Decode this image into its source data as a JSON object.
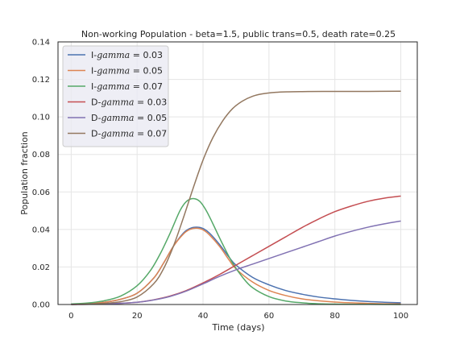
{
  "chart_data": {
    "type": "line",
    "title": "Non-working Population - beta=1.5, public trans=0.5, death rate=0.25",
    "xlabel": "Time (days)",
    "ylabel": "Population fraction",
    "xlim": [
      -4,
      105
    ],
    "ylim": [
      0,
      0.14
    ],
    "xticks": [
      0,
      20,
      40,
      60,
      80,
      100
    ],
    "xtick_labels": [
      "0",
      "20",
      "40",
      "60",
      "80",
      "100"
    ],
    "yticks": [
      0,
      0.02,
      0.04,
      0.06,
      0.08,
      0.1,
      0.12,
      0.14
    ],
    "ytick_labels": [
      "0.00",
      "0.02",
      "0.04",
      "0.06",
      "0.08",
      "0.10",
      "0.12",
      "0.14"
    ],
    "grid": true,
    "legend_position": "upper-left",
    "series": [
      {
        "name": "I-gamma = 0.03",
        "prefix": "I-",
        "var": "gamma",
        "suffix": " = 0.03",
        "color": "#4c72b0",
        "x": [
          0,
          5,
          10,
          15,
          20,
          25,
          28,
          31,
          34,
          36,
          38,
          40,
          42,
          45,
          48,
          50,
          55,
          60,
          65,
          70,
          75,
          80,
          85,
          90,
          95,
          100
        ],
        "y": [
          0.0002,
          0.0005,
          0.0012,
          0.0028,
          0.006,
          0.014,
          0.022,
          0.031,
          0.038,
          0.0405,
          0.0412,
          0.0405,
          0.038,
          0.032,
          0.025,
          0.021,
          0.0145,
          0.0105,
          0.0075,
          0.0055,
          0.004,
          0.003,
          0.0022,
          0.0016,
          0.0012,
          0.0009
        ]
      },
      {
        "name": "I-gamma = 0.05",
        "prefix": "I-",
        "var": "gamma",
        "suffix": " = 0.05",
        "color": "#dd8452",
        "x": [
          0,
          5,
          10,
          15,
          20,
          25,
          28,
          31,
          34,
          36,
          38,
          40,
          42,
          45,
          48,
          50,
          55,
          60,
          65,
          70,
          75,
          80,
          85,
          90,
          95,
          100
        ],
        "y": [
          0.0002,
          0.0005,
          0.0012,
          0.0028,
          0.006,
          0.014,
          0.022,
          0.031,
          0.0375,
          0.04,
          0.0407,
          0.0398,
          0.037,
          0.031,
          0.0235,
          0.019,
          0.012,
          0.0075,
          0.0048,
          0.003,
          0.002,
          0.0013,
          0.0009,
          0.0006,
          0.0004,
          0.0003
        ]
      },
      {
        "name": "I-gamma = 0.07",
        "prefix": "I-",
        "var": "gamma",
        "suffix": " = 0.07",
        "color": "#55a868",
        "x": [
          0,
          5,
          10,
          15,
          20,
          24,
          27,
          30,
          33,
          35,
          37,
          39,
          41,
          43,
          46,
          49,
          52,
          55,
          60,
          65,
          70,
          75,
          80,
          90,
          100
        ],
        "y": [
          0.0003,
          0.0008,
          0.002,
          0.0045,
          0.01,
          0.018,
          0.027,
          0.038,
          0.05,
          0.055,
          0.0565,
          0.055,
          0.05,
          0.043,
          0.032,
          0.022,
          0.0145,
          0.009,
          0.0042,
          0.0019,
          0.0009,
          0.0004,
          0.0002,
          0.0001,
          0.0
        ]
      },
      {
        "name": "D-gamma = 0.03",
        "prefix": "D-",
        "var": "gamma",
        "suffix": " = 0.03",
        "color": "#c44e52",
        "x": [
          0,
          10,
          20,
          25,
          30,
          35,
          40,
          45,
          50,
          55,
          60,
          65,
          70,
          75,
          80,
          85,
          90,
          95,
          100
        ],
        "y": [
          0.0,
          0.0003,
          0.0012,
          0.0025,
          0.0045,
          0.0075,
          0.0115,
          0.016,
          0.021,
          0.026,
          0.031,
          0.036,
          0.041,
          0.0455,
          0.0495,
          0.0525,
          0.055,
          0.0567,
          0.0578
        ]
      },
      {
        "name": "D-gamma = 0.05",
        "prefix": "D-",
        "var": "gamma",
        "suffix": " = 0.05",
        "color": "#8172b3",
        "x": [
          0,
          10,
          20,
          25,
          30,
          35,
          40,
          45,
          50,
          55,
          60,
          65,
          70,
          75,
          80,
          85,
          90,
          95,
          100
        ],
        "y": [
          0.0,
          0.0003,
          0.0012,
          0.0024,
          0.0043,
          0.0072,
          0.011,
          0.015,
          0.0185,
          0.0215,
          0.0245,
          0.0275,
          0.0305,
          0.0335,
          0.0365,
          0.039,
          0.0412,
          0.043,
          0.0445
        ]
      },
      {
        "name": "D-gamma = 0.07",
        "prefix": "D-",
        "var": "gamma",
        "suffix": " = 0.07",
        "color": "#937860",
        "x": [
          0,
          10,
          15,
          20,
          25,
          28,
          31,
          34,
          37,
          40,
          43,
          46,
          49,
          52,
          55,
          58,
          62,
          66,
          70,
          80,
          90,
          100
        ],
        "y": [
          0.0,
          0.0006,
          0.0015,
          0.004,
          0.011,
          0.019,
          0.031,
          0.046,
          0.062,
          0.077,
          0.089,
          0.098,
          0.1045,
          0.1085,
          0.111,
          0.1123,
          0.1131,
          0.1134,
          0.1135,
          0.1136,
          0.1136,
          0.1137
        ]
      }
    ]
  }
}
